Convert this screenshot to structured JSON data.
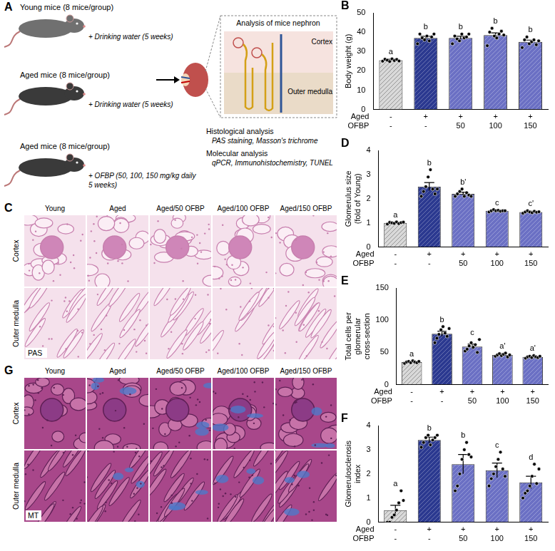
{
  "schematic": {
    "letter": "A",
    "groups": [
      {
        "title": "Young mice (8 mice/group)",
        "treatment": [
          "+ Drinking water (5 weeks)"
        ]
      },
      {
        "title": "Aged mice (8 mice/group)",
        "treatment": [
          "+ Drinking water (5 weeks)"
        ]
      },
      {
        "title": "Aged mice (8 mice/group)",
        "treatment": [
          "+ OFBP (50, 100, 150 mg/kg daily",
          "5 weeks)"
        ]
      }
    ],
    "nephron_title": "Analysis of mice nephron",
    "zones": [
      "Cortex",
      "Outer medulla"
    ],
    "analyses": [
      {
        "title": "Histological analysis",
        "methods": "PAS staining, Masson's trichrome"
      },
      {
        "title": "Molecular analysis",
        "methods": "qPCR, Immunohistochemistry, TUNEL"
      }
    ]
  },
  "micrographs": [
    {
      "letter": "C",
      "stain": "PAS",
      "columns": [
        "Young",
        "Aged",
        "Aged/50 OFBP",
        "Aged/100 OFBP",
        "Aged/150 OFBP"
      ],
      "rows": [
        "Cortex",
        "Outer medulla"
      ]
    },
    {
      "letter": "G",
      "stain": "MT",
      "columns": [
        "Young",
        "Aged",
        "Aged/50 OFBP",
        "Aged/100 OFBP",
        "Aged/150 OFBP"
      ],
      "rows": [
        "Cortex",
        "Outer medulla"
      ]
    }
  ],
  "chart_data": [
    {
      "letter": "B",
      "type": "bar",
      "y_label": "Body weight (g)",
      "categories": [
        [
          "-",
          "-"
        ],
        [
          "+",
          "-"
        ],
        [
          "+",
          "50"
        ],
        [
          "+",
          "100"
        ],
        [
          "+",
          "150"
        ]
      ],
      "category_rows": [
        "Aged",
        "OFBP"
      ],
      "values": [
        25.5,
        37,
        37,
        38.5,
        35
      ],
      "errors": [
        0.5,
        0.9,
        0.9,
        1.1,
        0.9
      ],
      "points": [
        [
          25,
          26,
          25.5,
          24.8,
          26.2,
          25.3,
          25.9,
          25.1
        ],
        [
          34,
          39,
          37,
          36,
          38,
          35.5,
          37.5,
          39
        ],
        [
          34,
          38,
          36.5,
          35.5,
          39,
          37,
          37.5,
          39
        ],
        [
          33,
          40,
          42,
          38,
          37,
          39,
          40.5,
          38.5
        ],
        [
          32,
          36,
          37.5,
          34,
          35,
          36,
          33.5,
          35.5
        ]
      ],
      "annotations": [
        "a",
        "b",
        "b",
        "b",
        "b"
      ],
      "colors": [
        "#d9d9d9",
        "#2b3990",
        "#6b70c4",
        "#6b70c4",
        "#6b70c4"
      ],
      "ylim": [
        0,
        50
      ],
      "yticks": [
        0,
        10,
        20,
        30,
        40,
        50
      ],
      "grid": false
    },
    {
      "letter": "D",
      "type": "bar",
      "y_label": "Glomerulus size (fold of Young)",
      "categories": [
        [
          "-",
          "-"
        ],
        [
          "+",
          "-"
        ],
        [
          "+",
          "50"
        ],
        [
          "+",
          "100"
        ],
        [
          "+",
          "150"
        ]
      ],
      "category_rows": [
        "Aged",
        "OFBP"
      ],
      "values": [
        1.0,
        2.5,
        2.2,
        1.5,
        1.45
      ],
      "errors": [
        0.03,
        0.17,
        0.07,
        0.03,
        0.03
      ],
      "points": [
        [
          0.95,
          1.02,
          1.0,
          0.98,
          1.04,
          0.97,
          1.01,
          1.03
        ],
        [
          2.1,
          2.3,
          2.5,
          2.9,
          3.2,
          2.4,
          2.2,
          2.4
        ],
        [
          2.1,
          2.2,
          2.3,
          2.4,
          2.1,
          2.25,
          2.15,
          2.1
        ],
        [
          1.45,
          1.5,
          1.55,
          1.5,
          1.52,
          1.48,
          1.5,
          1.5
        ],
        [
          1.4,
          1.45,
          1.5,
          1.45,
          1.42,
          1.48,
          1.44,
          1.46
        ]
      ],
      "annotations": [
        "a",
        "b",
        "b'",
        "c",
        "c'"
      ],
      "colors": [
        "#d9d9d9",
        "#2b3990",
        "#6b70c4",
        "#6b70c4",
        "#6b70c4"
      ],
      "ylim": [
        0,
        4
      ],
      "yticks": [
        0,
        1,
        2,
        3,
        4
      ],
      "grid": false
    },
    {
      "letter": "E",
      "type": "bar",
      "y_label": "Total cells per glomerular cross-section",
      "categories": [
        [
          "-",
          "-"
        ],
        [
          "+",
          "-"
        ],
        [
          "+",
          "50"
        ],
        [
          "+",
          "100"
        ],
        [
          "+",
          "150"
        ]
      ],
      "category_rows": [
        "Aged",
        "OFBP"
      ],
      "values": [
        35,
        79,
        59,
        46,
        43
      ],
      "errors": [
        1,
        4,
        4,
        2,
        1.5
      ],
      "points": [
        [
          33,
          35,
          36,
          34,
          37,
          35,
          34,
          36
        ],
        [
          65,
          72,
          78,
          85,
          90,
          80,
          75,
          87
        ],
        [
          52,
          55,
          60,
          65,
          58,
          62,
          50,
          70
        ],
        [
          44,
          46,
          48,
          45,
          47,
          49,
          43,
          46
        ],
        [
          41,
          43,
          44,
          42,
          45,
          43,
          42,
          44
        ]
      ],
      "annotations": [
        "a",
        "b",
        "c",
        "a'",
        "a'"
      ],
      "colors": [
        "#d9d9d9",
        "#2b3990",
        "#6b70c4",
        "#6b70c4",
        "#6b70c4"
      ],
      "ylim": [
        0,
        150
      ],
      "yticks": [
        0,
        50,
        100,
        150
      ],
      "grid": false
    },
    {
      "letter": "F",
      "type": "bar",
      "y_label": "Glomerulosclerosis index",
      "categories": [
        [
          "-",
          "-"
        ],
        [
          "+",
          "-"
        ],
        [
          "+",
          "50"
        ],
        [
          "+",
          "100"
        ],
        [
          "+",
          "150"
        ]
      ],
      "category_rows": [
        "Aged",
        "OFBP"
      ],
      "values": [
        0.5,
        3.4,
        2.4,
        2.15,
        1.65
      ],
      "errors": [
        0.2,
        0.12,
        0.4,
        0.3,
        0.25
      ],
      "points": [
        [
          0,
          0,
          0.2,
          0.3,
          0.5,
          0.8,
          1.3,
          0.9
        ],
        [
          3.1,
          3.3,
          3.5,
          3.6,
          3.2,
          3.4,
          3.5,
          3.6
        ],
        [
          1.3,
          1.5,
          2.0,
          2.6,
          3.0,
          3.3,
          2.8,
          2.7
        ],
        [
          1.5,
          1.8,
          2.0,
          2.3,
          2.6,
          2.9,
          2.2,
          1.9
        ],
        [
          1.0,
          1.2,
          1.3,
          1.5,
          1.9,
          2.4,
          1.6,
          2.2
        ]
      ],
      "annotations": [
        "a",
        "b",
        "b",
        "c",
        "d"
      ],
      "colors": [
        "#d9d9d9",
        "#2b3990",
        "#6b70c4",
        "#6b70c4",
        "#6b70c4"
      ],
      "ylim": [
        0,
        4
      ],
      "yticks": [
        0,
        1,
        2,
        3,
        4
      ],
      "grid": false
    }
  ]
}
